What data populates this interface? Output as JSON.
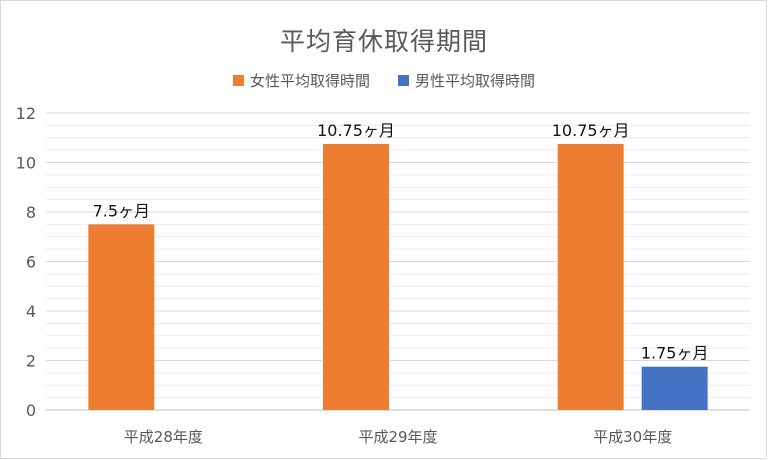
{
  "chart_data": {
    "type": "bar",
    "title": "平均育休取得期間",
    "categories": [
      "平成28年度",
      "平成29年度",
      "平成30年度"
    ],
    "series": [
      {
        "name": "女性平均取得時間",
        "color": "#ED7D31",
        "values": [
          7.5,
          10.75,
          10.75
        ],
        "labels": [
          "7.5ヶ月",
          "10.75ヶ月",
          "10.75ヶ月"
        ]
      },
      {
        "name": "男性平均取得時間",
        "color": "#4472C4",
        "values": [
          null,
          null,
          1.75
        ],
        "labels": [
          "",
          "",
          "1.75ヶ月"
        ]
      }
    ],
    "ylim": [
      0,
      12
    ],
    "yticks": [
      0,
      2,
      4,
      6,
      8,
      10,
      12
    ],
    "grid": true,
    "legend_position": "top"
  }
}
